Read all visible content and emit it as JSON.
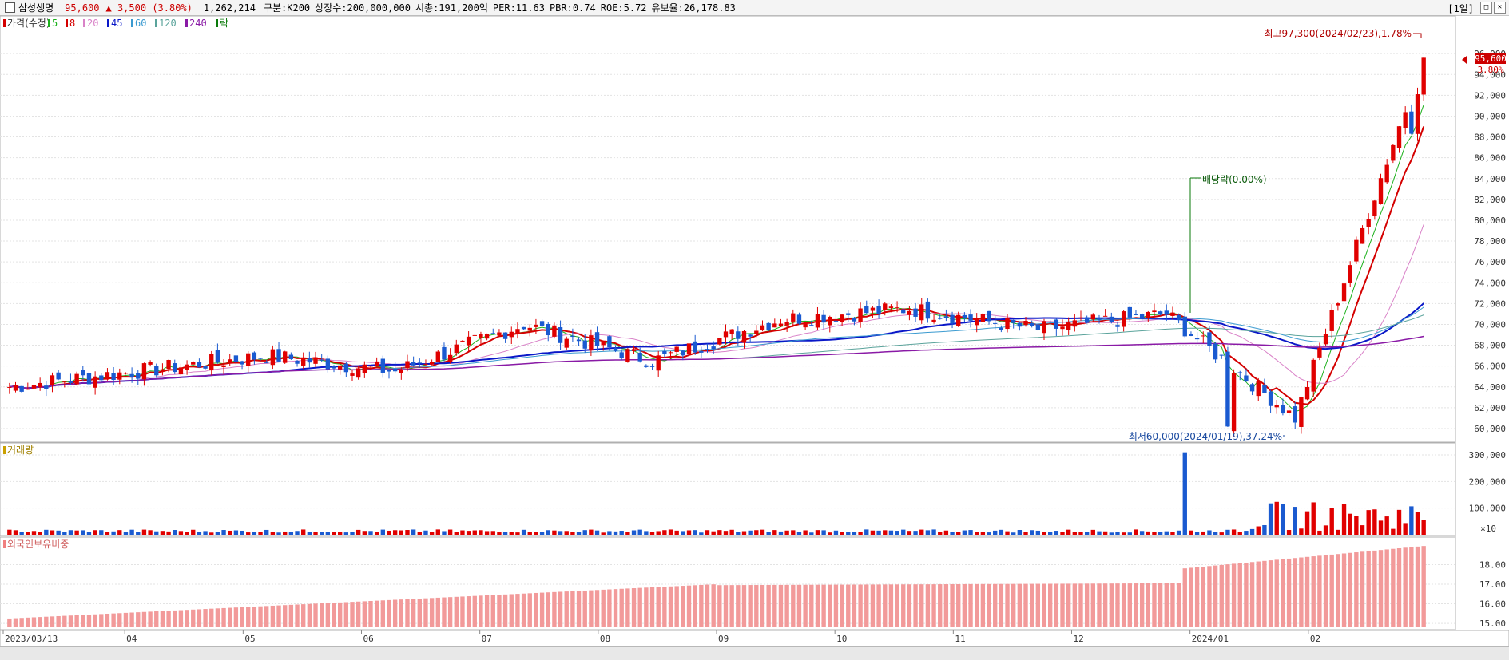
{
  "header": {
    "name": "삼성생명",
    "price": "95,600",
    "change": "▲ 3,500 (3.80%)",
    "volume": "1,262,214",
    "segment": "구분:K200",
    "shares": "상장수:200,000,000",
    "mktcap": "시총:191,200억",
    "per": "PER:11.63",
    "pbr": "PBR:0.74",
    "roe": "ROE:5.72",
    "holders": "유보율:26,178.83",
    "period": "[1일]"
  },
  "legend": {
    "price": "가격(수정)",
    "ma": [
      {
        "label": "5",
        "color": "#1cb11c"
      },
      {
        "label": "8",
        "color": "#d40000"
      },
      {
        "label": "20",
        "color": "#d982c8"
      },
      {
        "label": "45",
        "color": "#0a18c8"
      },
      {
        "label": "60",
        "color": "#3a9ad0"
      },
      {
        "label": "120",
        "color": "#5aa39b"
      },
      {
        "label": "240",
        "color": "#8a1aa6"
      },
      {
        "label": "락",
        "color": "#0a7a0a"
      }
    ]
  },
  "annotations": {
    "high": "최고97,300(2024/02/23),1.78%",
    "low": "최저60,000(2024/01/19),37.24%",
    "dividend": "배당락(0.00%)",
    "last_price": "95,600",
    "last_pct": "3.80%",
    "volume_panel": "거래량",
    "foreign_panel": "외국인보유비중",
    "vol_multiplier": "×10"
  },
  "chart_data": {
    "type": "candlestick",
    "x_start": "2023/03/13",
    "x_tick_labels": [
      "2023/03/13",
      "04",
      "05",
      "06",
      "07",
      "08",
      "09",
      "10",
      "11",
      "12",
      "2024/01",
      "02"
    ],
    "price_panel": {
      "ylim": [
        59000,
        99000
      ],
      "y_ticks": [
        60000,
        62000,
        64000,
        66000,
        68000,
        70000,
        72000,
        74000,
        76000,
        78000,
        80000,
        82000,
        84000,
        86000,
        88000,
        90000,
        92000,
        94000,
        96000
      ],
      "close_by_month": {
        "2023/03": 64000,
        "2023/04": 65500,
        "2023/05": 67000,
        "2023/06": 65500,
        "2023/07": 70000,
        "2023/08": 66500,
        "2023/09": 70500,
        "2023/10": 71500,
        "2023/11": 69500,
        "2023/12": 71000,
        "2024/01": 61000,
        "2024/02": 95600
      },
      "high": 97300,
      "low": 60000
    },
    "volume_panel": {
      "ylim": [
        0,
        330000
      ],
      "y_ticks": [
        100000,
        200000,
        300000
      ],
      "peak": 310000
    },
    "foreign_panel": {
      "ylim": [
        14.8,
        19.2
      ],
      "y_ticks": [
        15.0,
        16.0,
        17.0,
        18.0
      ],
      "start": 15.25,
      "end": 18.95
    }
  }
}
